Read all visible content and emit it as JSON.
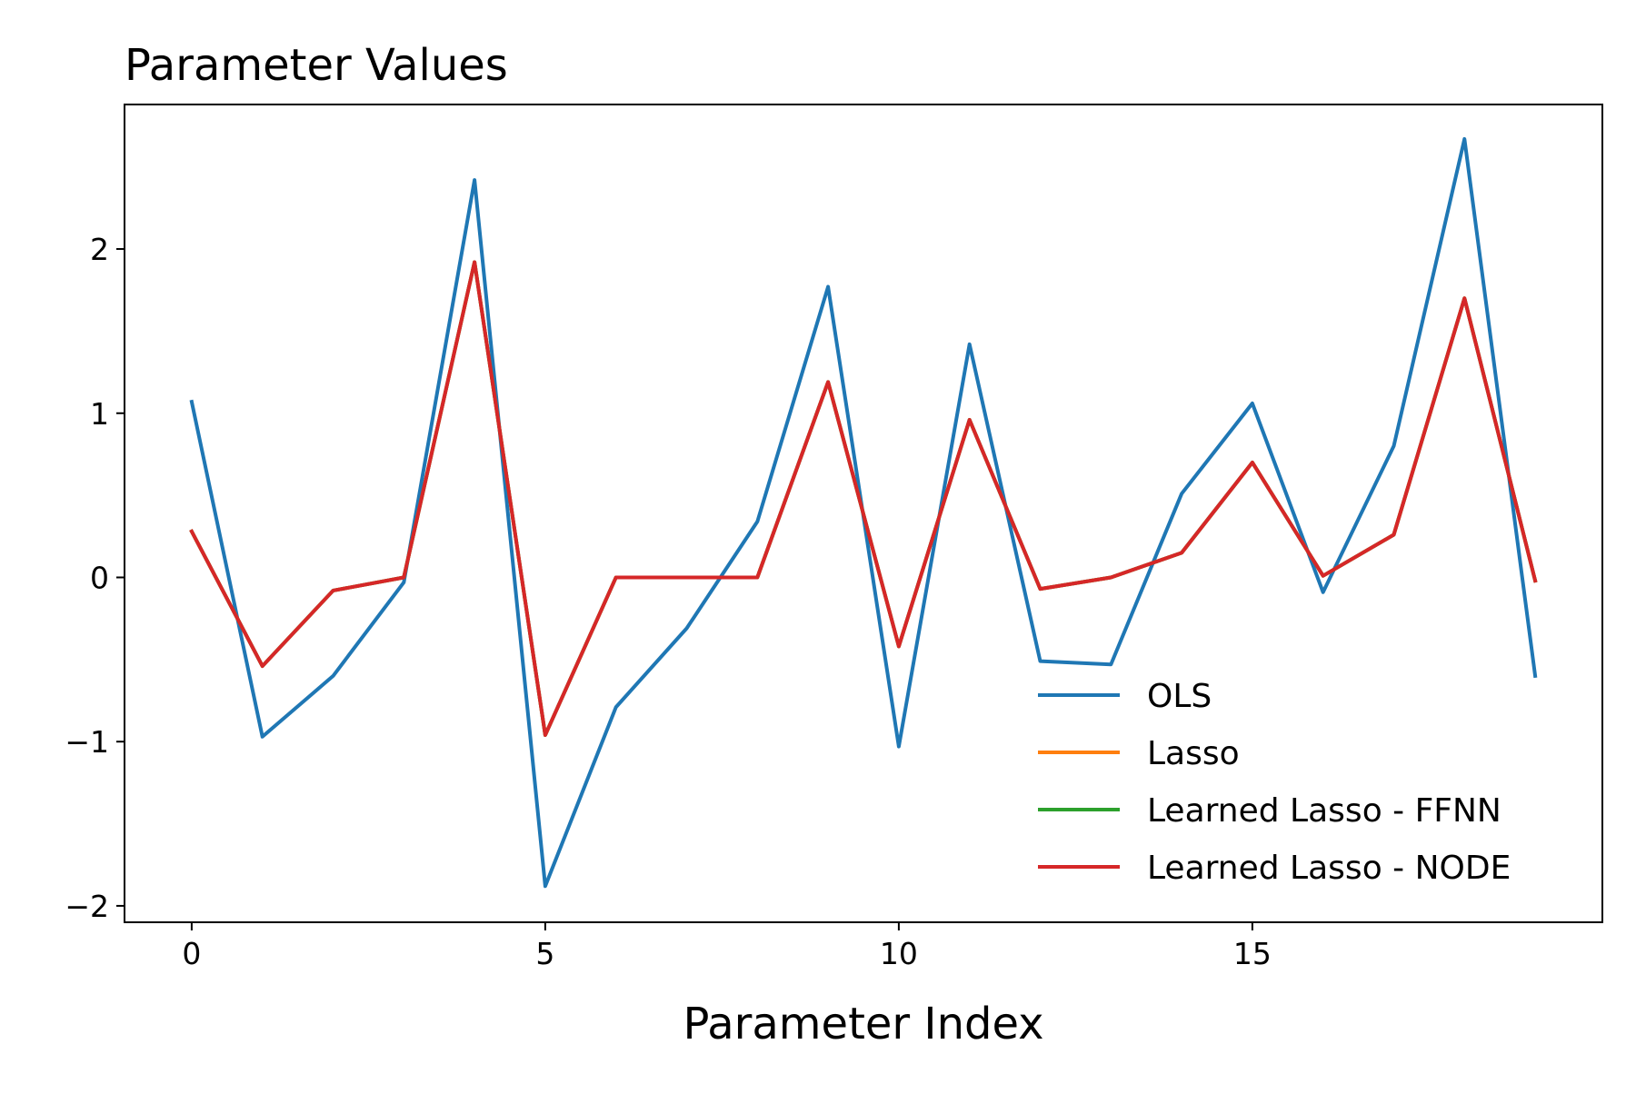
{
  "chart_data": {
    "type": "line",
    "title": "Parameter Values",
    "xlabel": "Parameter Index",
    "ylabel": "",
    "xlim": [
      -0.95,
      19.95
    ],
    "ylim": [
      -2.1,
      2.88
    ],
    "xticks": [
      0,
      5,
      10,
      15
    ],
    "yticks": [
      -2,
      -1,
      0,
      1,
      2
    ],
    "xtick_labels": [
      "0",
      "5",
      "10",
      "15"
    ],
    "ytick_labels": [
      "−2",
      "−1",
      "0",
      "1",
      "2"
    ],
    "grid": false,
    "legend_position": "lower-right",
    "x": [
      0,
      1,
      2,
      3,
      4,
      5,
      6,
      7,
      8,
      9,
      10,
      11,
      12,
      13,
      14,
      15,
      16,
      17,
      18,
      19
    ],
    "series": [
      {
        "name": "OLS",
        "color": "#1f77b4",
        "values": [
          1.07,
          -0.97,
          -0.6,
          -0.03,
          2.42,
          -1.88,
          -0.79,
          -0.31,
          0.34,
          1.77,
          -1.03,
          1.42,
          -0.51,
          -0.53,
          0.51,
          1.06,
          -0.09,
          0.8,
          2.67,
          -0.6
        ]
      },
      {
        "name": "Lasso",
        "color": "#ff7f0e",
        "values": [
          0.28,
          -0.54,
          -0.08,
          0.0,
          1.92,
          -0.96,
          0.0,
          0.0,
          0.0,
          1.19,
          -0.42,
          0.96,
          -0.07,
          0.0,
          0.15,
          0.7,
          0.01,
          0.26,
          1.7,
          -0.02
        ]
      },
      {
        "name": "Learned Lasso - FFNN",
        "color": "#2ca02c",
        "values": [
          0.28,
          -0.54,
          -0.08,
          0.0,
          1.92,
          -0.96,
          0.0,
          0.0,
          0.0,
          1.19,
          -0.42,
          0.96,
          -0.07,
          0.0,
          0.15,
          0.7,
          0.01,
          0.26,
          1.7,
          -0.02
        ]
      },
      {
        "name": "Learned Lasso - NODE",
        "color": "#d62728",
        "values": [
          0.28,
          -0.54,
          -0.08,
          0.0,
          1.92,
          -0.96,
          0.0,
          0.0,
          0.0,
          1.19,
          -0.42,
          0.96,
          -0.07,
          0.0,
          0.15,
          0.7,
          0.01,
          0.26,
          1.7,
          -0.02
        ]
      }
    ]
  }
}
